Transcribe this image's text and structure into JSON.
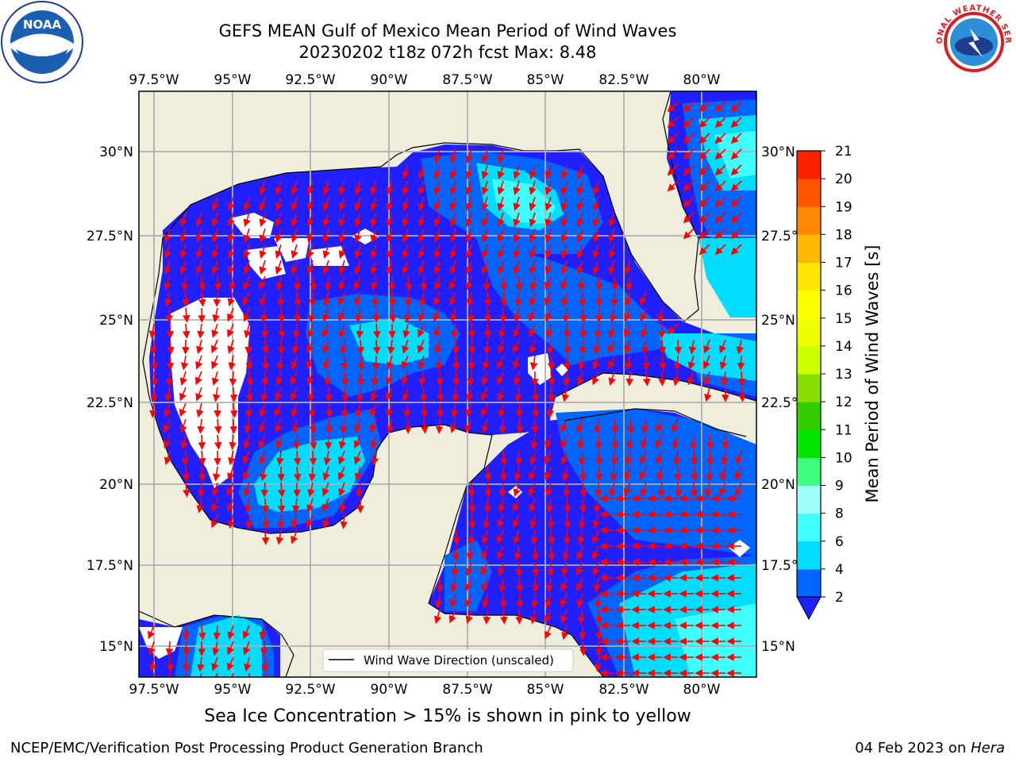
{
  "title": {
    "line1": "GEFS MEAN Gulf of Mexico Mean Period of Wind Waves",
    "line2": "20230202 t18z 072h fcst   Max: 8.48"
  },
  "map": {
    "lon_ticks": [
      "97.5°W",
      "95°W",
      "92.5°W",
      "90°W",
      "87.5°W",
      "85°W",
      "82.5°W",
      "80°W"
    ],
    "lat_ticks_left": [
      "30°N",
      "27.5°N",
      "25°N",
      "22.5°N",
      "20°N",
      "17.5°N",
      "15°N"
    ],
    "lat_ticks_right": [
      "30°N",
      "27.5°N",
      "25°N",
      "22.5°N",
      "20°N",
      "17.5°N",
      "15°N"
    ],
    "legend_label": "Wind Wave Direction (unscaled)",
    "land_color": "#efeedc",
    "arrow_color": "#ff0000"
  },
  "colorbar": {
    "label": "Mean Period of Wind Waves [s]",
    "ticks": [
      "2",
      "4",
      "6",
      "8",
      "9",
      "10",
      "11",
      "12",
      "13",
      "14",
      "15",
      "16",
      "17",
      "18",
      "19",
      "20",
      "21"
    ],
    "colors": [
      "#0066ff",
      "#00ddff",
      "#40ffff",
      "#9fffff",
      "#40ff80",
      "#00e600",
      "#33cc00",
      "#88dd00",
      "#ccff00",
      "#eeff00",
      "#ffff00",
      "#ffe600",
      "#ffb800",
      "#ff8800",
      "#ff5500",
      "#ff2200"
    ],
    "under_color": "#1f1fff"
  },
  "footer": {
    "note": "Sea Ice Concentration > 15% is shown in pink to yellow",
    "left": "NCEP/EMC/Verification Post Processing Product Generation Branch",
    "date": "04 Feb 2023 on ",
    "machine": "Hera"
  },
  "logos": {
    "noaa_text": "NOAA",
    "nws_text": "NATIONAL WEATHER SERVICE"
  }
}
